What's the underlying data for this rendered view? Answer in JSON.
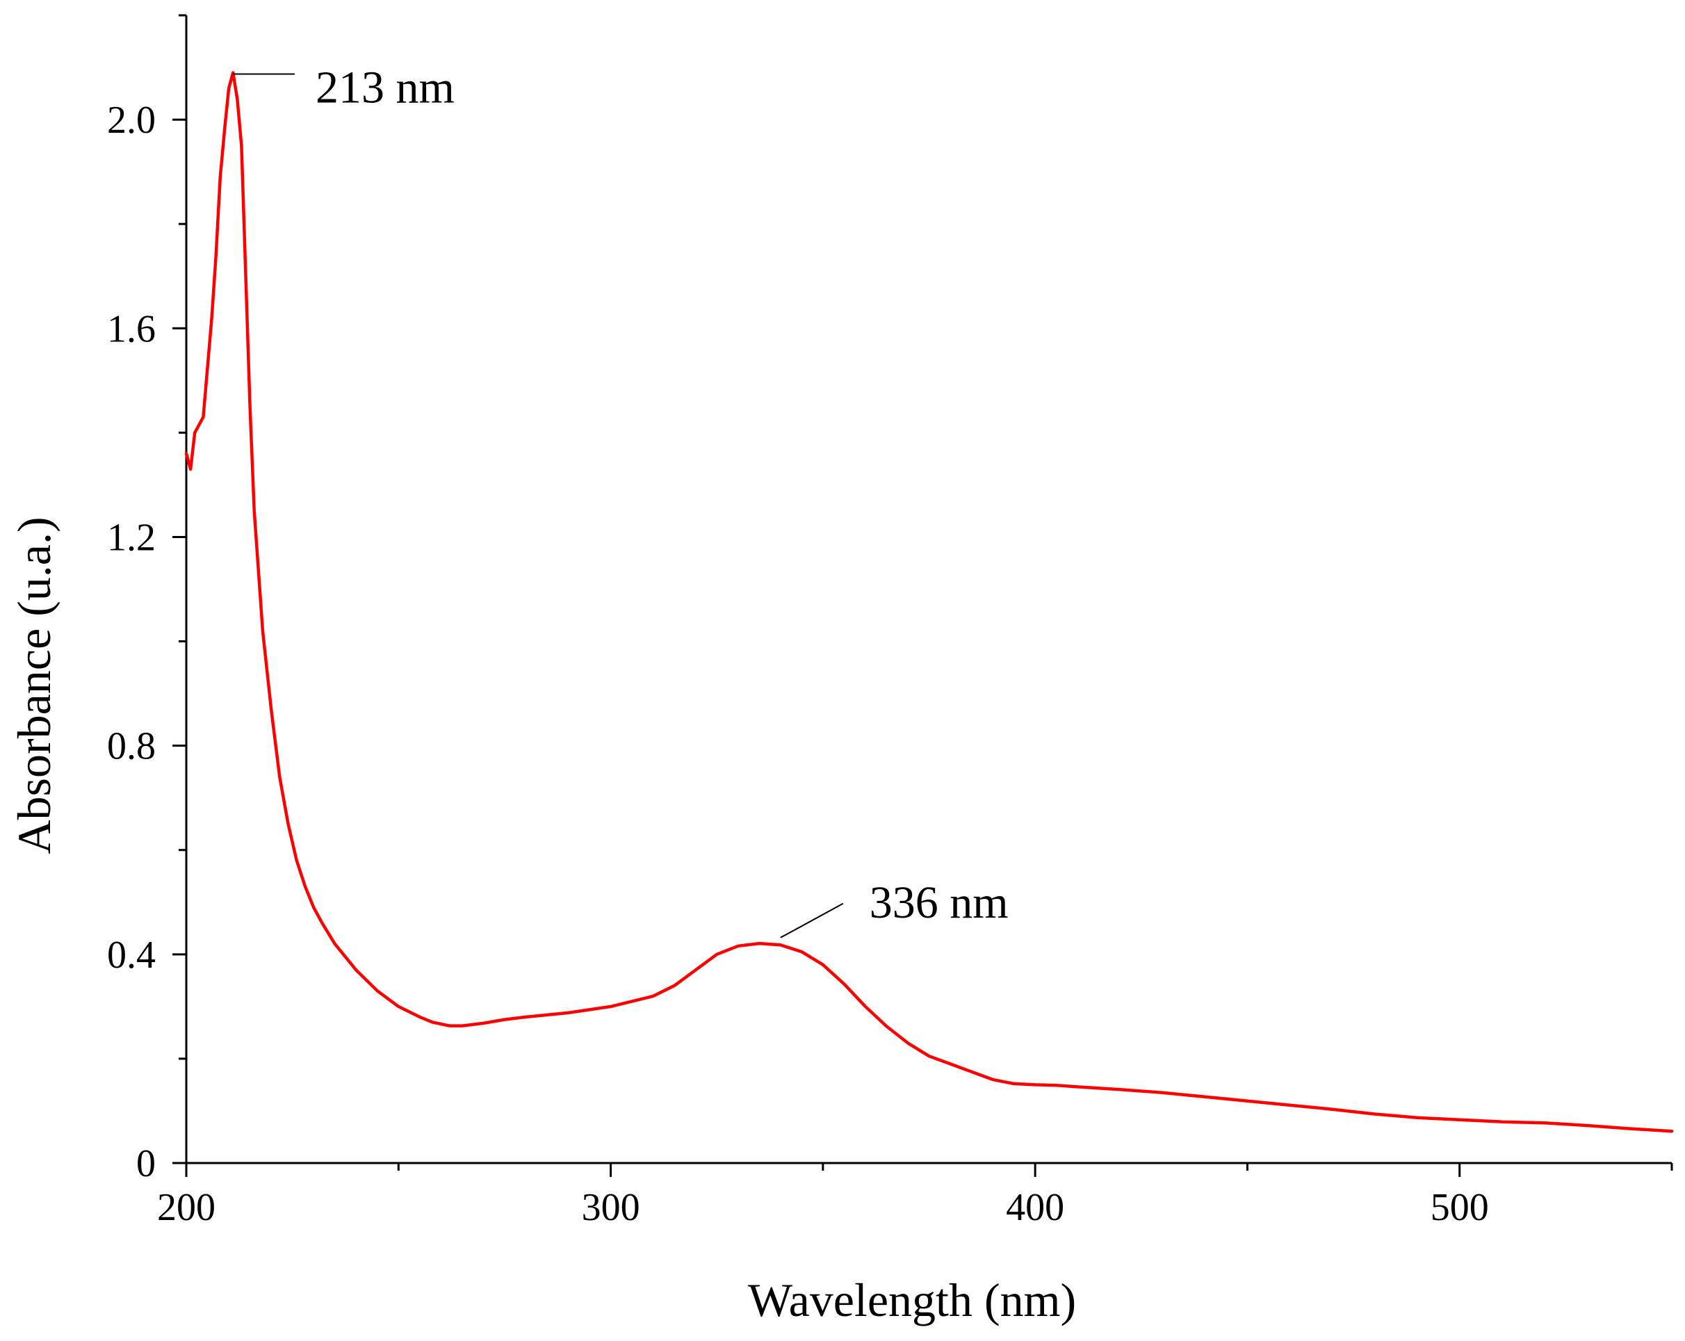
{
  "chart_data": {
    "type": "line",
    "xlabel": "Wavelength (nm)",
    "ylabel": "Absorbance (u.a.)",
    "xlim": [
      200,
      550
    ],
    "ylim": [
      0,
      2.2
    ],
    "x_ticks": [
      {
        "value": 200,
        "label": "200"
      },
      {
        "value": 300,
        "label": "300"
      },
      {
        "value": 400,
        "label": "400"
      },
      {
        "value": 500,
        "label": "500"
      }
    ],
    "x_minor_ticks": [
      250,
      350,
      450,
      550
    ],
    "y_ticks": [
      {
        "value": 0,
        "label": "0"
      },
      {
        "value": 0.4,
        "label": "0.4"
      },
      {
        "value": 0.8,
        "label": "0.8"
      },
      {
        "value": 1.2,
        "label": "1.2"
      },
      {
        "value": 1.6,
        "label": "1.6"
      },
      {
        "value": 2.0,
        "label": "2.0"
      }
    ],
    "y_minor_ticks": [
      0.2,
      0.6,
      1.0,
      1.4,
      1.8,
      2.2
    ],
    "grid": false,
    "series": [
      {
        "color": "#ff0000",
        "x": [
          200,
          201,
          202,
          204,
          206,
          207,
          208,
          209,
          210,
          211,
          212,
          213,
          214,
          215,
          216,
          218,
          220,
          222,
          224,
          226,
          228,
          230,
          232,
          235,
          240,
          245,
          250,
          255,
          258,
          262,
          265,
          270,
          275,
          280,
          290,
          300,
          305,
          310,
          315,
          320,
          325,
          330,
          335,
          340,
          345,
          350,
          355,
          360,
          365,
          370,
          375,
          380,
          385,
          390,
          395,
          400,
          405,
          410,
          420,
          430,
          440,
          450,
          460,
          470,
          480,
          490,
          500,
          510,
          520,
          530,
          540,
          550
        ],
        "y": [
          1.36,
          1.33,
          1.4,
          1.43,
          1.62,
          1.74,
          1.89,
          1.98,
          2.06,
          2.09,
          2.04,
          1.95,
          1.7,
          1.45,
          1.25,
          1.02,
          0.87,
          0.74,
          0.65,
          0.58,
          0.53,
          0.49,
          0.46,
          0.42,
          0.37,
          0.33,
          0.3,
          0.28,
          0.27,
          0.263,
          0.263,
          0.268,
          0.275,
          0.28,
          0.288,
          0.3,
          0.31,
          0.32,
          0.34,
          0.37,
          0.4,
          0.416,
          0.421,
          0.418,
          0.405,
          0.38,
          0.343,
          0.3,
          0.262,
          0.23,
          0.205,
          0.19,
          0.175,
          0.16,
          0.152,
          0.15,
          0.149,
          0.146,
          0.141,
          0.135,
          0.127,
          0.119,
          0.111,
          0.103,
          0.094,
          0.087,
          0.083,
          0.079,
          0.077,
          0.072,
          0.066,
          0.061
        ]
      }
    ],
    "annotations": [
      {
        "text": "213 nm",
        "x": 210,
        "y": 2.09
      },
      {
        "text": "336 nm",
        "x": 340,
        "y": 0.44
      }
    ]
  }
}
